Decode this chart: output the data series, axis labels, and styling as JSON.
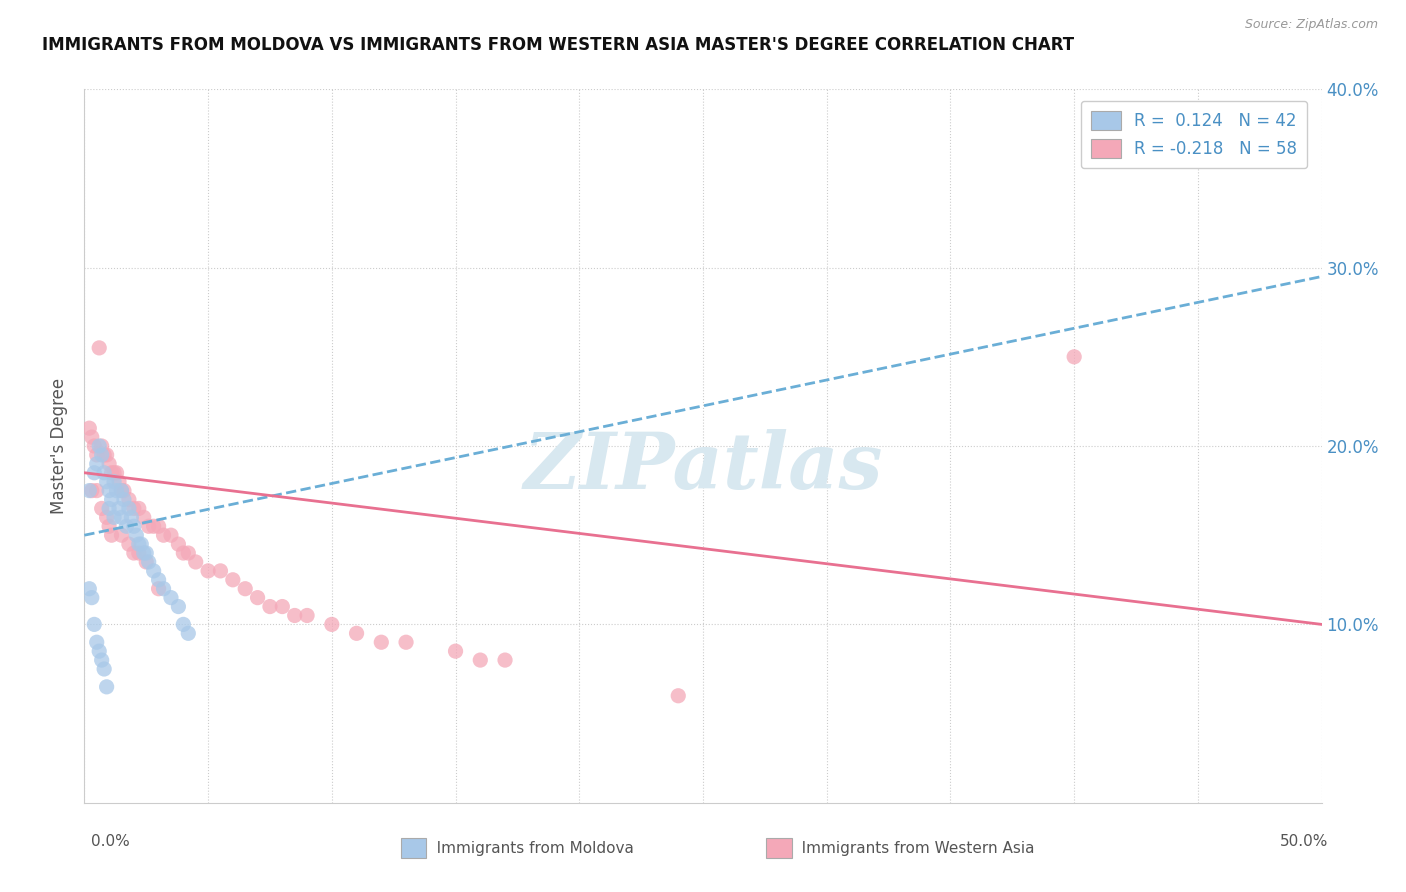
{
  "title": "IMMIGRANTS FROM MOLDOVA VS IMMIGRANTS FROM WESTERN ASIA MASTER'S DEGREE CORRELATION CHART",
  "source": "Source: ZipAtlas.com",
  "ylabel": "Master's Degree",
  "x_min": 0.0,
  "x_max": 0.5,
  "y_min": 0.0,
  "y_max": 0.4,
  "yticks": [
    0.1,
    0.2,
    0.3,
    0.4
  ],
  "ytick_labels": [
    "10.0%",
    "20.0%",
    "30.0%",
    "40.0%"
  ],
  "xticks": [
    0.0,
    0.05,
    0.1,
    0.15,
    0.2,
    0.25,
    0.3,
    0.35,
    0.4,
    0.45,
    0.5
  ],
  "legend_line1": "R =  0.124   N = 42",
  "legend_line2": "R = -0.218   N = 58",
  "legend_label_blue": "Immigrants from Moldova",
  "legend_label_pink": "Immigrants from Western Asia",
  "color_blue": "#a8c8e8",
  "color_pink": "#f4a8b8",
  "color_blue_line": "#6aaed6",
  "color_pink_line": "#e87090",
  "color_blue_dark": "#4a90c4",
  "watermark": "ZIPatlas",
  "blue_scatter_x": [
    0.002,
    0.004,
    0.005,
    0.006,
    0.007,
    0.008,
    0.009,
    0.01,
    0.01,
    0.011,
    0.012,
    0.012,
    0.013,
    0.014,
    0.015,
    0.015,
    0.016,
    0.017,
    0.018,
    0.019,
    0.02,
    0.021,
    0.022,
    0.023,
    0.024,
    0.025,
    0.026,
    0.028,
    0.03,
    0.032,
    0.035,
    0.038,
    0.04,
    0.042,
    0.002,
    0.003,
    0.004,
    0.005,
    0.006,
    0.007,
    0.008,
    0.009
  ],
  "blue_scatter_y": [
    0.175,
    0.185,
    0.19,
    0.2,
    0.195,
    0.185,
    0.18,
    0.175,
    0.165,
    0.17,
    0.18,
    0.16,
    0.175,
    0.165,
    0.175,
    0.16,
    0.17,
    0.155,
    0.165,
    0.16,
    0.155,
    0.15,
    0.145,
    0.145,
    0.14,
    0.14,
    0.135,
    0.13,
    0.125,
    0.12,
    0.115,
    0.11,
    0.1,
    0.095,
    0.12,
    0.115,
    0.1,
    0.09,
    0.085,
    0.08,
    0.075,
    0.065
  ],
  "pink_scatter_x": [
    0.002,
    0.003,
    0.004,
    0.005,
    0.006,
    0.007,
    0.008,
    0.009,
    0.01,
    0.011,
    0.012,
    0.013,
    0.014,
    0.015,
    0.016,
    0.018,
    0.02,
    0.022,
    0.024,
    0.026,
    0.028,
    0.03,
    0.032,
    0.035,
    0.038,
    0.04,
    0.042,
    0.045,
    0.05,
    0.055,
    0.06,
    0.065,
    0.07,
    0.075,
    0.08,
    0.085,
    0.09,
    0.1,
    0.11,
    0.12,
    0.13,
    0.15,
    0.16,
    0.17,
    0.24,
    0.003,
    0.005,
    0.007,
    0.009,
    0.01,
    0.011,
    0.015,
    0.018,
    0.02,
    0.022,
    0.025,
    0.03,
    0.4
  ],
  "pink_scatter_y": [
    0.21,
    0.205,
    0.2,
    0.195,
    0.255,
    0.2,
    0.195,
    0.195,
    0.19,
    0.185,
    0.185,
    0.185,
    0.18,
    0.175,
    0.175,
    0.17,
    0.165,
    0.165,
    0.16,
    0.155,
    0.155,
    0.155,
    0.15,
    0.15,
    0.145,
    0.14,
    0.14,
    0.135,
    0.13,
    0.13,
    0.125,
    0.12,
    0.115,
    0.11,
    0.11,
    0.105,
    0.105,
    0.1,
    0.095,
    0.09,
    0.09,
    0.085,
    0.08,
    0.08,
    0.06,
    0.175,
    0.175,
    0.165,
    0.16,
    0.155,
    0.15,
    0.15,
    0.145,
    0.14,
    0.14,
    0.135,
    0.12,
    0.25
  ],
  "blue_line_x0": 0.0,
  "blue_line_x1": 0.5,
  "blue_line_y0": 0.15,
  "blue_line_y1": 0.295,
  "pink_line_x0": 0.0,
  "pink_line_x1": 0.5,
  "pink_line_y0": 0.185,
  "pink_line_y1": 0.1
}
